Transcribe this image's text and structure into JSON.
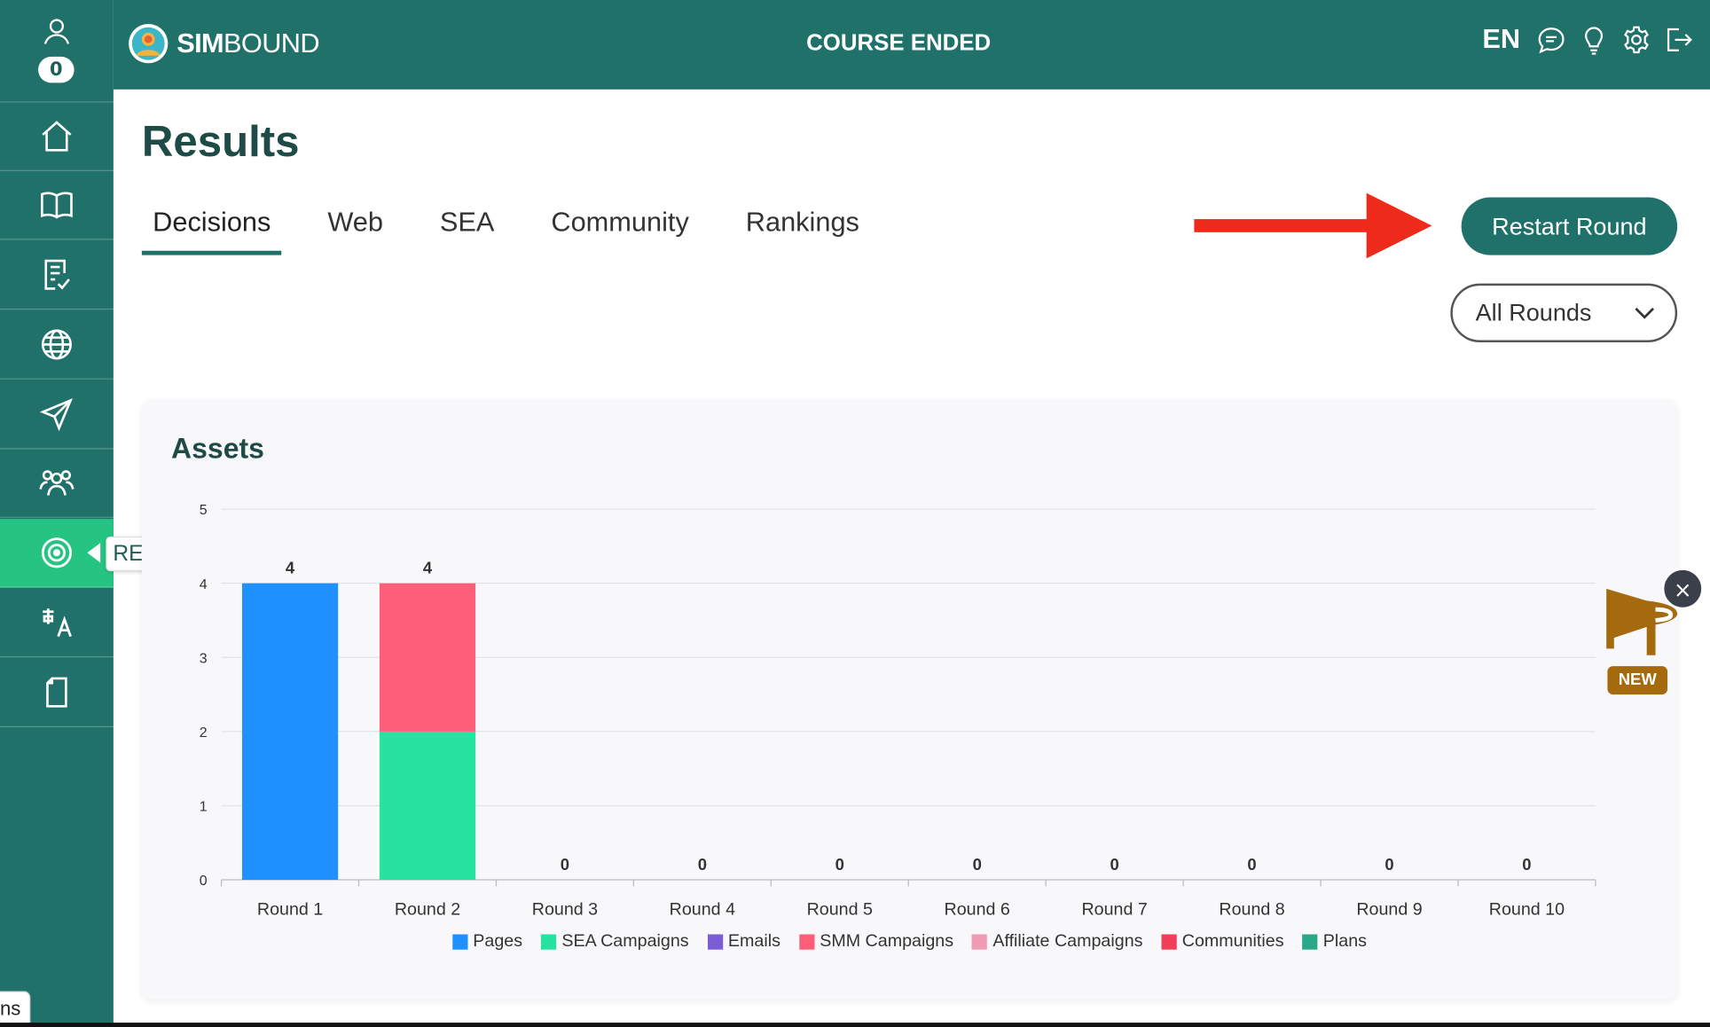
{
  "user": {
    "points": "0"
  },
  "sidebar": {
    "items": [
      {
        "name": "home",
        "icon": "home-icon"
      },
      {
        "name": "book",
        "icon": "book-icon"
      },
      {
        "name": "tasks",
        "icon": "checklist-icon"
      },
      {
        "name": "web",
        "icon": "globe-icon"
      },
      {
        "name": "send",
        "icon": "send-icon"
      },
      {
        "name": "community",
        "icon": "users-icon"
      },
      {
        "name": "results",
        "icon": "target-icon",
        "active": true
      },
      {
        "name": "translate",
        "icon": "translate-icon"
      },
      {
        "name": "document",
        "icon": "document-icon"
      }
    ],
    "active_tooltip": "RESULTS",
    "corner_text": "ns"
  },
  "header": {
    "logo_bold": "SIM",
    "logo_rest": "BOUND",
    "status": "COURSE ENDED",
    "language": "EN",
    "icons": [
      "chat-icon",
      "lightbulb-icon",
      "settings-icon",
      "logout-icon"
    ]
  },
  "main": {
    "title": "Results",
    "tabs": [
      {
        "label": "Decisions",
        "active": true
      },
      {
        "label": "Web"
      },
      {
        "label": "SEA"
      },
      {
        "label": "Community"
      },
      {
        "label": "Rankings"
      }
    ],
    "restart_label": "Restart Round",
    "rounds_selected": "All Rounds"
  },
  "card": {
    "title": "Assets"
  },
  "chart_data": {
    "type": "bar",
    "stacked": true,
    "title": "Assets",
    "categories": [
      "Round 1",
      "Round 2",
      "Round 3",
      "Round 4",
      "Round 5",
      "Round 6",
      "Round 7",
      "Round 8",
      "Round 9",
      "Round 10"
    ],
    "series": [
      {
        "name": "Pages",
        "color": "#1e90ff",
        "values": [
          4,
          0,
          0,
          0,
          0,
          0,
          0,
          0,
          0,
          0
        ]
      },
      {
        "name": "SEA Campaigns",
        "color": "#26e3a0",
        "values": [
          0,
          2,
          0,
          0,
          0,
          0,
          0,
          0,
          0,
          0
        ]
      },
      {
        "name": "Emails",
        "color": "#7b5bd6",
        "values": [
          0,
          0,
          0,
          0,
          0,
          0,
          0,
          0,
          0,
          0
        ]
      },
      {
        "name": "SMM Campaigns",
        "color": "#ff5e78",
        "values": [
          0,
          2,
          0,
          0,
          0,
          0,
          0,
          0,
          0,
          0
        ]
      },
      {
        "name": "Affiliate Campaigns",
        "color": "#f29ab5",
        "values": [
          0,
          0,
          0,
          0,
          0,
          0,
          0,
          0,
          0,
          0
        ]
      },
      {
        "name": "Communities",
        "color": "#f23e58",
        "values": [
          0,
          0,
          0,
          0,
          0,
          0,
          0,
          0,
          0,
          0
        ]
      },
      {
        "name": "Plans",
        "color": "#2aa88a",
        "values": [
          0,
          0,
          0,
          0,
          0,
          0,
          0,
          0,
          0,
          0
        ]
      }
    ],
    "totals": [
      4,
      4,
      0,
      0,
      0,
      0,
      0,
      0,
      0,
      0
    ],
    "ylim": [
      0,
      5
    ],
    "yticks": [
      0,
      1,
      2,
      3,
      4,
      5
    ],
    "grid": true,
    "legend_position": "bottom"
  },
  "promo": {
    "badge": "NEW",
    "close": "×"
  },
  "colors": {
    "brand": "#20716a",
    "active": "#26c483",
    "promo": "#a56a0e",
    "arrow": "#ee2a1b"
  }
}
